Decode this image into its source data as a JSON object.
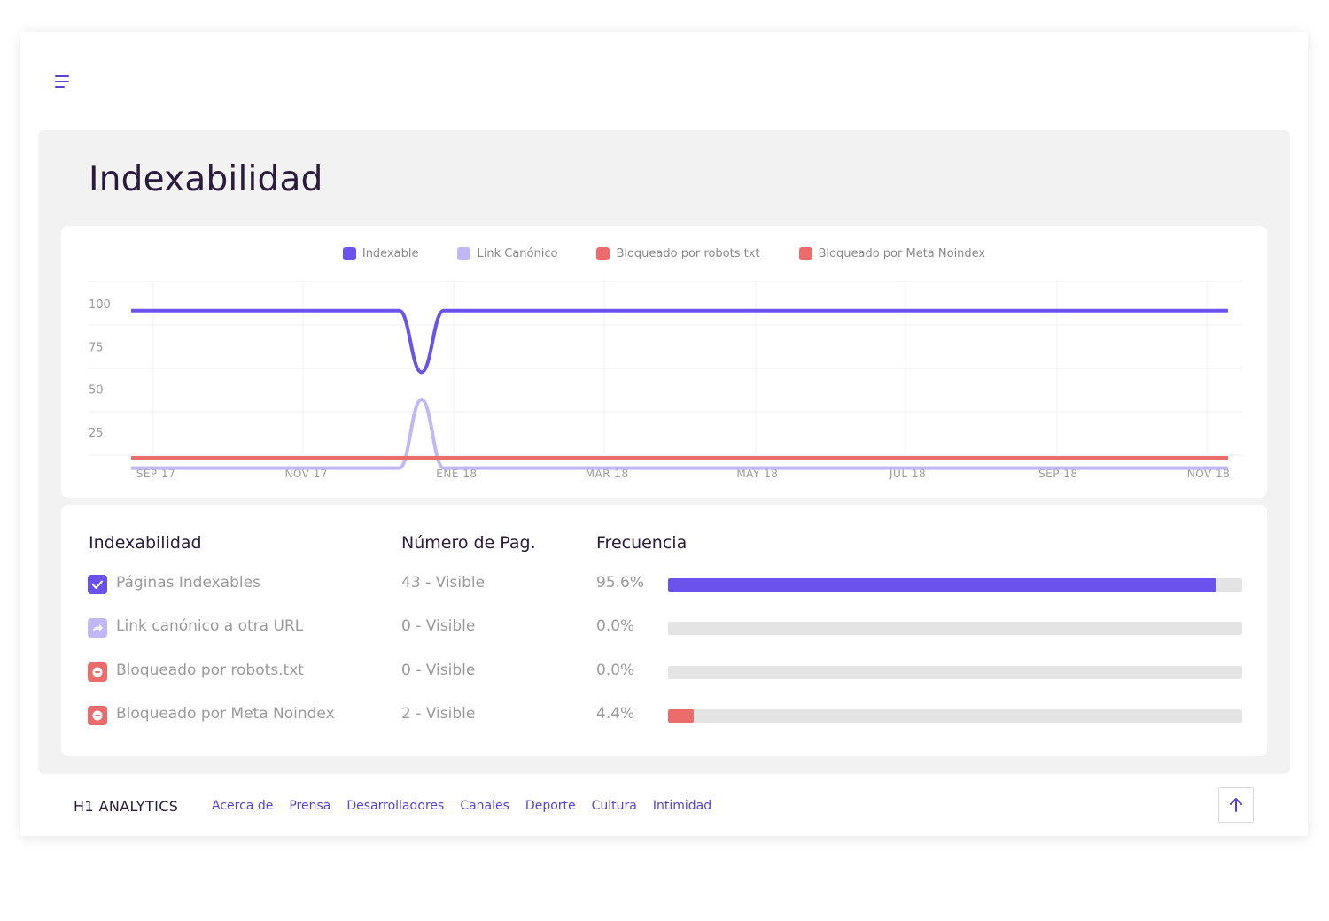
{
  "header": {
    "menu_icon": "hamburger-menu-icon"
  },
  "page": {
    "title": "Indexabilidad"
  },
  "colors": {
    "indexable": "#6b52ed",
    "canonico": "#c2b7f5",
    "robots": "#ec6b6b",
    "noindex": "#ec6b6b",
    "title": "#2a1a3c",
    "link": "#5b3fd6"
  },
  "chart_data": {
    "type": "line",
    "title": "",
    "xlabel": "",
    "ylabel": "",
    "x_ticks": [
      "SEP 17",
      "NOV 17",
      "ENE 18",
      "MAR 18",
      "MAY 18",
      "JUL 18",
      "SEP 18",
      "NOV 18"
    ],
    "y_ticks": [
      25,
      50,
      75,
      100
    ],
    "ylim": [
      0,
      100
    ],
    "grid": true,
    "legend": "top",
    "x": [
      "SEP 17",
      "OCT 17",
      "NOV 17",
      "DIC 17",
      "ENE 18",
      "FEB 18",
      "MAR 18",
      "ABR 18",
      "MAY 18",
      "JUN 18",
      "JUL 18",
      "AGO 18",
      "SEP 18",
      "OCT 18",
      "NOV 18"
    ],
    "series": [
      {
        "name": "Indexable",
        "color": "#6b52ed",
        "values": [
          96,
          96,
          96,
          96,
          60,
          96,
          96,
          96,
          96,
          96,
          96,
          96,
          96,
          96,
          96
        ]
      },
      {
        "name": "Link Canónico",
        "color": "#c2b7f5",
        "values": [
          4,
          4,
          4,
          4,
          44,
          4,
          4,
          4,
          4,
          4,
          4,
          4,
          4,
          4,
          4
        ]
      },
      {
        "name": "Bloqueado por robots.txt",
        "color": "#ec6b6b",
        "values": [
          10,
          10,
          10,
          10,
          10,
          10,
          10,
          10,
          10,
          10,
          10,
          10,
          10,
          10,
          10
        ]
      },
      {
        "name": "Bloqueado por Meta Noindex",
        "color": "#ec6b6b",
        "values": [
          10,
          10,
          10,
          10,
          10,
          10,
          10,
          10,
          10,
          10,
          10,
          10,
          10,
          10,
          10
        ]
      }
    ]
  },
  "table": {
    "headers": {
      "col1": "Indexabilidad",
      "col2": "Número de Pag.",
      "col3": "Frecuencia"
    },
    "rows": [
      {
        "label": "Páginas Indexables",
        "count": "43 - Visible",
        "pct": "95.6%",
        "fraction": 0.956,
        "color": "#6b52ed",
        "icon": "check-icon"
      },
      {
        "label": "Link canónico a otra URL",
        "count": "0 - Visible",
        "pct": "0.0%",
        "fraction": 0.0,
        "color": "#c2b7f5",
        "icon": "redirect-arrow-icon"
      },
      {
        "label": "Bloqueado por robots.txt",
        "count": "0 - Visible",
        "pct": "0.0%",
        "fraction": 0.0,
        "color": "#ec6b6b",
        "icon": "blocked-icon"
      },
      {
        "label": "Bloqueado por Meta Noindex",
        "count": "2 - Visible",
        "pct": "4.4%",
        "fraction": 0.044,
        "color": "#ec6b6b",
        "icon": "blocked-icon"
      }
    ]
  },
  "footer": {
    "brand": "H1 ANALYTICS",
    "links": [
      "Acerca de",
      "Prensa",
      "Desarrolladores",
      "Canales",
      "Deporte",
      "Cultura",
      "Intimidad"
    ],
    "top_icon": "arrow-up-icon"
  }
}
